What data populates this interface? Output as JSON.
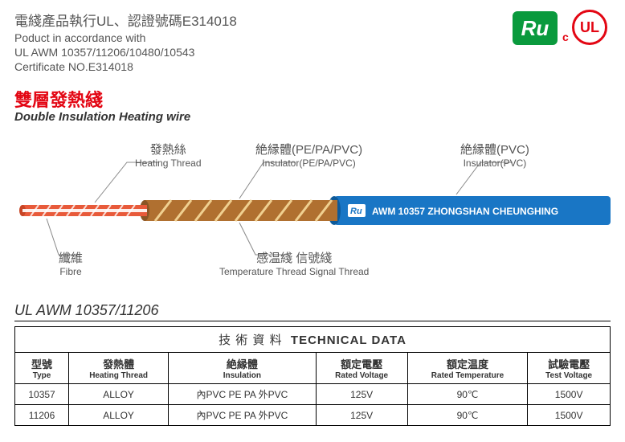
{
  "header": {
    "cn": "電綫產品執行UL、認證號碼E314018",
    "en1": "Poduct in accordance with",
    "en2": "UL AWM 10357/11206/10480/10543",
    "en3": "Certificate NO.E314018"
  },
  "logos": {
    "ru": "Ru",
    "ul": "UL",
    "ul_c": "c"
  },
  "title": {
    "cn": "雙層發熱綫",
    "en": "Double Insulation Heating wire"
  },
  "labels": {
    "heating": {
      "cn": "發熱絲",
      "en": "Heating Thread"
    },
    "insul1": {
      "cn": "絶縁體(PE/PA/PVC)",
      "en": "Insulator(PE/PA/PVC)"
    },
    "insul2": {
      "cn": "絶縁體(PVC)",
      "en": "Insulator(PVC)"
    },
    "fibre": {
      "cn": "纖維",
      "en": "Fibre"
    },
    "temp": {
      "cn": "感温綫 信號綫",
      "en": "Temperature Thread Signal Thread"
    }
  },
  "wire": {
    "mark": "Ru",
    "text": "AWM 10357 ZHONGSHAN CHEUNGHING"
  },
  "colors": {
    "outer": "#1976c5",
    "inner": "#b07030",
    "heat": "#e85a3a",
    "fibre": "#fff",
    "stripe": "#f0d090",
    "text": "#555",
    "red": "#e30613",
    "green": "#0a9a3d"
  },
  "section": "UL AWM 10357/11206",
  "table": {
    "title_cn": "技 術 資 料",
    "title_en": "TECHNICAL DATA",
    "headers": [
      {
        "cn": "型號",
        "en": "Type"
      },
      {
        "cn": "發熱體",
        "en": "Heating Thread"
      },
      {
        "cn": "絶縁體",
        "en": "Insulation"
      },
      {
        "cn": "額定電壓",
        "en": "Rated Voltage"
      },
      {
        "cn": "額定温度",
        "en": "Rated Temperature"
      },
      {
        "cn": "試驗電壓",
        "en": "Test Voltage"
      }
    ],
    "rows": [
      [
        "10357",
        "ALLOY",
        "內PVC PE PA 外PVC",
        "125V",
        "90℃",
        "1500V"
      ],
      [
        "11206",
        "ALLOY",
        "內PVC PE PA 外PVC",
        "125V",
        "90℃",
        "1500V"
      ]
    ]
  }
}
